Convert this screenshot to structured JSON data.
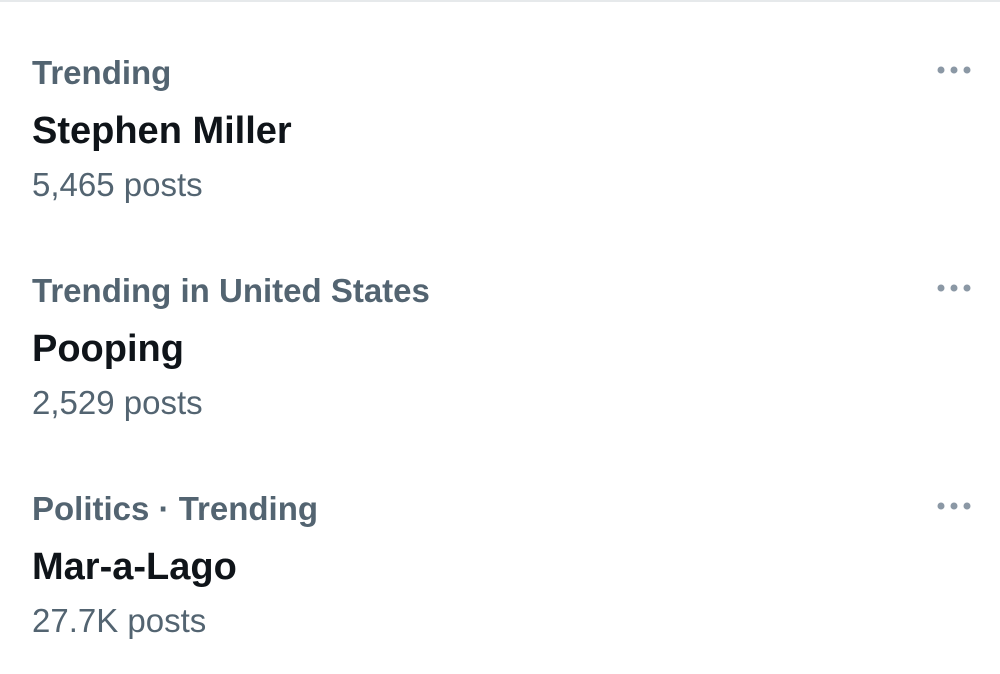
{
  "trends": [
    {
      "context": "Trending",
      "name": "Stephen Miller",
      "posts": "5,465 posts"
    },
    {
      "context": "Trending in United States",
      "name": "Pooping",
      "posts": "2,529 posts"
    },
    {
      "context": "Politics · Trending",
      "name": "Mar-a-Lago",
      "posts": "27.7K posts"
    }
  ]
}
